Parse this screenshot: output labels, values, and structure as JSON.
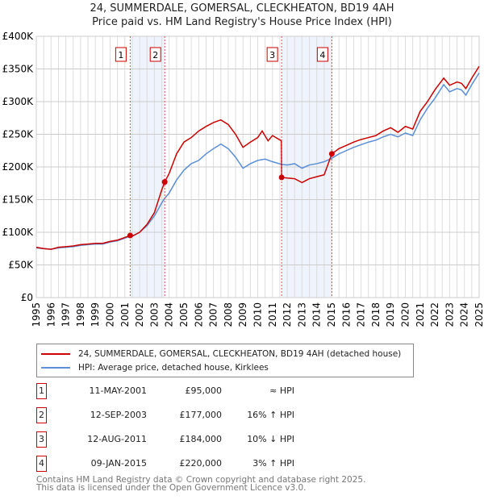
{
  "chart_data": {
    "type": "line",
    "title": "24, SUMMERDALE, GOMERSAL, CLECKHEATON, BD19 4AH",
    "subtitle": "Price paid vs. HM Land Registry's House Price Index (HPI)",
    "xlim": [
      1995,
      2025
    ],
    "ylim": [
      0,
      400000
    ],
    "x_ticks": [
      "1995",
      "1996",
      "1997",
      "1998",
      "1999",
      "2000",
      "2001",
      "2002",
      "2003",
      "2004",
      "2005",
      "2006",
      "2007",
      "2008",
      "2009",
      "2010",
      "2011",
      "2012",
      "2013",
      "2014",
      "2015",
      "2016",
      "2017",
      "2018",
      "2019",
      "2020",
      "2021",
      "2022",
      "2023",
      "2024",
      "2025"
    ],
    "y_ticks": [
      {
        "v": 0,
        "l": "£0"
      },
      {
        "v": 50000,
        "l": "£50K"
      },
      {
        "v": 100000,
        "l": "£100K"
      },
      {
        "v": 150000,
        "l": "£150K"
      },
      {
        "v": 200000,
        "l": "£200K"
      },
      {
        "v": 250000,
        "l": "£250K"
      },
      {
        "v": 300000,
        "l": "£300K"
      },
      {
        "v": 350000,
        "l": "£350K"
      },
      {
        "v": 400000,
        "l": "£400K"
      }
    ],
    "series": [
      {
        "name": "24, SUMMERDALE, GOMERSAL, CLECKHEATON, BD19 4AH (detached house)",
        "color": "#cc0000",
        "points": [
          [
            1995,
            77000
          ],
          [
            1995.5,
            75000
          ],
          [
            1996,
            74000
          ],
          [
            1996.5,
            77000
          ],
          [
            1997,
            78000
          ],
          [
            1997.5,
            79000
          ],
          [
            1998,
            81000
          ],
          [
            1998.5,
            82000
          ],
          [
            1999,
            83000
          ],
          [
            1999.5,
            83000
          ],
          [
            2000,
            86000
          ],
          [
            2000.5,
            88000
          ],
          [
            2001,
            92000
          ],
          [
            2001.36,
            95000
          ],
          [
            2001.5,
            94000
          ],
          [
            2002,
            100000
          ],
          [
            2002.5,
            112000
          ],
          [
            2003,
            130000
          ],
          [
            2003.5,
            165000
          ],
          [
            2003.7,
            177000
          ],
          [
            2004,
            190000
          ],
          [
            2004.5,
            220000
          ],
          [
            2005,
            238000
          ],
          [
            2005.5,
            245000
          ],
          [
            2006,
            255000
          ],
          [
            2006.5,
            262000
          ],
          [
            2007,
            268000
          ],
          [
            2007.5,
            272000
          ],
          [
            2008,
            265000
          ],
          [
            2008.5,
            250000
          ],
          [
            2009,
            230000
          ],
          [
            2009.5,
            238000
          ],
          [
            2010,
            245000
          ],
          [
            2010.3,
            255000
          ],
          [
            2010.7,
            240000
          ],
          [
            2011,
            248000
          ],
          [
            2011.6,
            240000
          ],
          [
            2011.62,
            184000
          ],
          [
            2012,
            183000
          ],
          [
            2012.5,
            182000
          ],
          [
            2013,
            176000
          ],
          [
            2013.5,
            182000
          ],
          [
            2014,
            185000
          ],
          [
            2014.5,
            188000
          ],
          [
            2015.02,
            220000
          ],
          [
            2015.5,
            228000
          ],
          [
            2016,
            233000
          ],
          [
            2016.5,
            238000
          ],
          [
            2017,
            242000
          ],
          [
            2017.5,
            245000
          ],
          [
            2018,
            248000
          ],
          [
            2018.5,
            255000
          ],
          [
            2019,
            260000
          ],
          [
            2019.5,
            253000
          ],
          [
            2020,
            262000
          ],
          [
            2020.5,
            258000
          ],
          [
            2021,
            285000
          ],
          [
            2021.5,
            300000
          ],
          [
            2022,
            318000
          ],
          [
            2022.6,
            336000
          ],
          [
            2023,
            325000
          ],
          [
            2023.5,
            330000
          ],
          [
            2023.8,
            328000
          ],
          [
            2024.1,
            320000
          ],
          [
            2024.5,
            336000
          ],
          [
            2025,
            354000
          ]
        ]
      },
      {
        "name": "HPI: Average price, detached house, Kirklees",
        "color": "#5b8fd6",
        "points": [
          [
            1995,
            76000
          ],
          [
            1995.5,
            75000
          ],
          [
            1996,
            74000
          ],
          [
            1996.5,
            76000
          ],
          [
            1997,
            77000
          ],
          [
            1997.5,
            78000
          ],
          [
            1998,
            80000
          ],
          [
            1998.5,
            81000
          ],
          [
            1999,
            82000
          ],
          [
            1999.5,
            82000
          ],
          [
            2000,
            85000
          ],
          [
            2000.5,
            87000
          ],
          [
            2001,
            91000
          ],
          [
            2001.36,
            94000
          ],
          [
            2001.5,
            94000
          ],
          [
            2002,
            100000
          ],
          [
            2002.5,
            110000
          ],
          [
            2003,
            125000
          ],
          [
            2003.5,
            145000
          ],
          [
            2003.7,
            152000
          ],
          [
            2004,
            160000
          ],
          [
            2004.5,
            180000
          ],
          [
            2005,
            195000
          ],
          [
            2005.5,
            205000
          ],
          [
            2006,
            210000
          ],
          [
            2006.5,
            220000
          ],
          [
            2007,
            228000
          ],
          [
            2007.5,
            235000
          ],
          [
            2008,
            228000
          ],
          [
            2008.5,
            215000
          ],
          [
            2009,
            198000
          ],
          [
            2009.5,
            205000
          ],
          [
            2010,
            210000
          ],
          [
            2010.5,
            212000
          ],
          [
            2011,
            208000
          ],
          [
            2011.6,
            204000
          ],
          [
            2012,
            203000
          ],
          [
            2012.5,
            205000
          ],
          [
            2013,
            198000
          ],
          [
            2013.5,
            203000
          ],
          [
            2014,
            205000
          ],
          [
            2014.5,
            208000
          ],
          [
            2015,
            213000
          ],
          [
            2015.5,
            220000
          ],
          [
            2016,
            225000
          ],
          [
            2016.5,
            230000
          ],
          [
            2017,
            234000
          ],
          [
            2017.5,
            238000
          ],
          [
            2018,
            241000
          ],
          [
            2018.5,
            246000
          ],
          [
            2019,
            250000
          ],
          [
            2019.5,
            246000
          ],
          [
            2020,
            252000
          ],
          [
            2020.5,
            248000
          ],
          [
            2021,
            272000
          ],
          [
            2021.5,
            290000
          ],
          [
            2022,
            305000
          ],
          [
            2022.6,
            326000
          ],
          [
            2023,
            315000
          ],
          [
            2023.5,
            320000
          ],
          [
            2023.8,
            318000
          ],
          [
            2024.1,
            310000
          ],
          [
            2024.5,
            326000
          ],
          [
            2025,
            344000
          ]
        ]
      }
    ],
    "sales": [
      {
        "n": "1",
        "x": 2001.36,
        "y": 95000
      },
      {
        "n": "2",
        "x": 2003.7,
        "y": 177000
      },
      {
        "n": "3",
        "x": 2011.62,
        "y": 184000
      },
      {
        "n": "4",
        "x": 2015.02,
        "y": 220000
      }
    ],
    "shaded": [
      [
        2001.36,
        2003.7
      ],
      [
        2011.62,
        2015.02
      ]
    ]
  },
  "legend": {
    "red": "24, SUMMERDALE, GOMERSAL, CLECKHEATON, BD19 4AH (detached house)",
    "blue": "HPI: Average price, detached house, Kirklees"
  },
  "table": [
    {
      "n": "1",
      "date": "11-MAY-2001",
      "price": "£95,000",
      "hpi": "≈ HPI"
    },
    {
      "n": "2",
      "date": "12-SEP-2003",
      "price": "£177,000",
      "hpi": "16% ↑ HPI"
    },
    {
      "n": "3",
      "date": "12-AUG-2011",
      "price": "£184,000",
      "hpi": "10% ↓ HPI"
    },
    {
      "n": "4",
      "date": "09-JAN-2015",
      "price": "£220,000",
      "hpi": "3% ↑ HPI"
    }
  ],
  "footer": {
    "line1": "Contains HM Land Registry data © Crown copyright and database right 2025.",
    "line2": "This data is licensed under the Open Government Licence v3.0."
  }
}
